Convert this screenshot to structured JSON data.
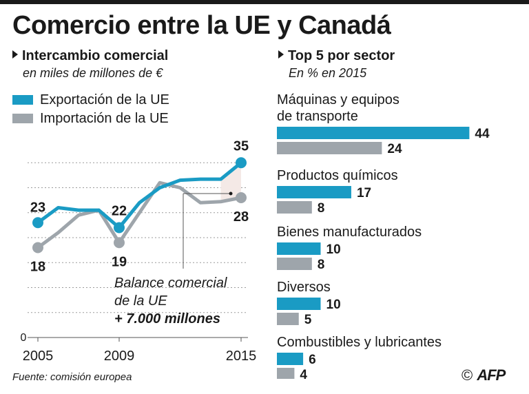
{
  "title": "Comercio entre la UE y Canadá",
  "left_panel": {
    "heading": "Intercambio comercial",
    "subheading": "en miles de millones de €",
    "legend": {
      "export": "Exportación de la UE",
      "import": "Importación de la UE"
    }
  },
  "right_panel": {
    "heading": "Top 5 por sector",
    "subheading": "En % en 2015"
  },
  "colors": {
    "export": "#1a9bc4",
    "import": "#9ea5ab",
    "text": "#1a1a1a",
    "balance_fill": "#f4e9e6"
  },
  "chart_data": [
    {
      "type": "line",
      "title": "Intercambio comercial",
      "ylabel": "en miles de millones de €",
      "ylim": [
        0,
        40
      ],
      "x": [
        2005,
        2006,
        2007,
        2008,
        2009,
        2010,
        2011,
        2012,
        2013,
        2014,
        2015
      ],
      "x_tick_labels": [
        "2005",
        "2009",
        "2015"
      ],
      "y_tick_labels": [
        "0"
      ],
      "series": [
        {
          "name": "Exportación de la UE",
          "values": [
            23,
            26,
            25.5,
            25.5,
            22,
            27,
            30,
            31.5,
            31.7,
            31.7,
            35
          ]
        },
        {
          "name": "Importación de la UE",
          "values": [
            18,
            21,
            24.5,
            25.5,
            19,
            25,
            31,
            30,
            27,
            27.2,
            28
          ]
        }
      ],
      "point_labels": [
        {
          "series": "Exportación de la UE",
          "x": 2005,
          "label": "23"
        },
        {
          "series": "Exportación de la UE",
          "x": 2009,
          "label": "22"
        },
        {
          "series": "Exportación de la UE",
          "x": 2015,
          "label": "35"
        },
        {
          "series": "Importación de la UE",
          "x": 2005,
          "label": "18"
        },
        {
          "series": "Importación de la UE",
          "x": 2009,
          "label": "19"
        },
        {
          "series": "Importación de la UE",
          "x": 2015,
          "label": "28"
        }
      ],
      "annotation": {
        "line1": "Balance comercial",
        "line2": "de la UE",
        "line3": "+ 7.000 millones"
      }
    },
    {
      "type": "bar",
      "title": "Top 5 por sector",
      "subtitle": "En % en 2015",
      "categories": [
        {
          "line1": "Máquinas y equipos",
          "line2": "de transporte"
        },
        {
          "line1": "Productos químicos",
          "line2": ""
        },
        {
          "line1": "Bienes manufacturados",
          "line2": ""
        },
        {
          "line1": "Diversos",
          "line2": ""
        },
        {
          "line1": "Combustibles y lubricantes",
          "line2": ""
        }
      ],
      "series": [
        {
          "name": "Exportación de la UE",
          "values": [
            44,
            17,
            10,
            10,
            6
          ]
        },
        {
          "name": "Importación de la UE",
          "values": [
            24,
            8,
            8,
            5,
            4
          ]
        }
      ]
    }
  ],
  "footer": {
    "source": "Fuente: comisión europea",
    "credit_symbol": "©",
    "credit_logo": "AFP"
  }
}
